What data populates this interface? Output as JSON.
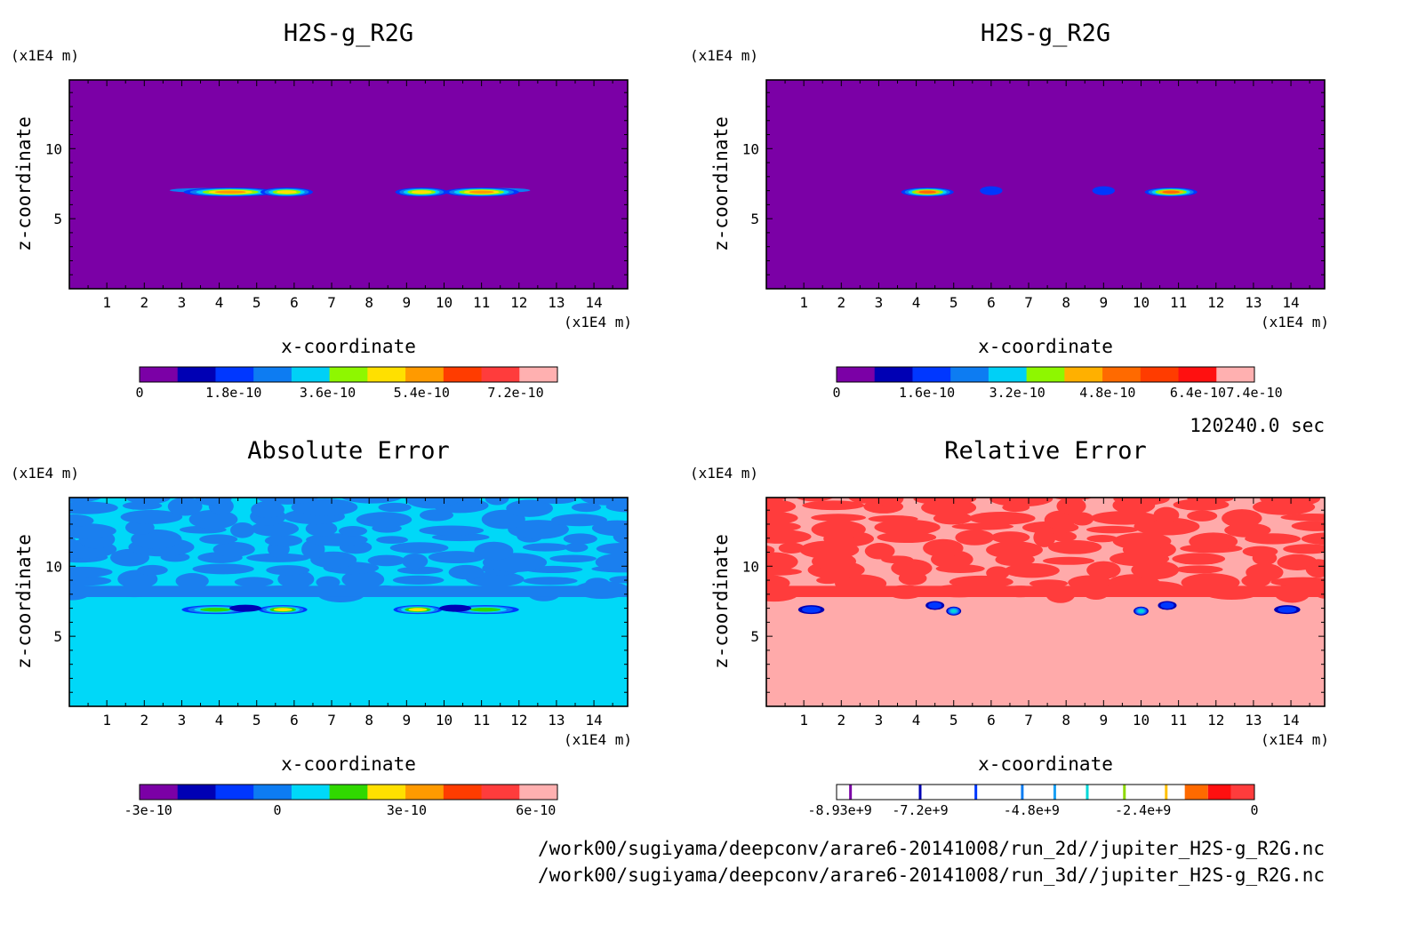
{
  "info": {
    "time_label": "120240.0 sec",
    "file_paths": [
      "/work00/sugiyama/deepconv/arare6-20141008/run_2d//jupiter_H2S-g_R2G.nc",
      "/work00/sugiyama/deepconv/arare6-20141008/run_3d//jupiter_H2S-g_R2G.nc"
    ]
  },
  "chart_data": [
    {
      "type": "heatmap",
      "title": "H2S-g_R2G",
      "xlabel": "x-coordinate",
      "ylabel": "z-coordinate",
      "x_unit": "(x1E4 m)",
      "y_unit": "(x1E4 m)",
      "x_ticks": [
        "1",
        "2",
        "3",
        "4",
        "5",
        "6",
        "7",
        "8",
        "9",
        "10",
        "11",
        "12",
        "13",
        "14"
      ],
      "y_ticks": [
        "5",
        "10"
      ],
      "xlim": [
        0,
        14.9
      ],
      "ylim": [
        0,
        14.9
      ],
      "background_color": "#7b00a6",
      "blobs": [
        {
          "x": 4.3,
          "z": 6.9,
          "w": 2.5,
          "peak_level": 7,
          "tail": "left"
        },
        {
          "x": 5.8,
          "z": 6.9,
          "w": 1.4,
          "peak_level": 6
        },
        {
          "x": 9.4,
          "z": 6.9,
          "w": 1.4,
          "peak_level": 6
        },
        {
          "x": 11.0,
          "z": 6.9,
          "w": 2.0,
          "peak_level": 7,
          "tail": "right"
        }
      ],
      "colorbar": {
        "colors": [
          "#7b00a6",
          "#0000b4",
          "#0037ff",
          "#0d7cf2",
          "#00d0f6",
          "#8ef700",
          "#ffe000",
          "#ff9a00",
          "#ff3c00",
          "#ff3c3c",
          "#ffb0b0"
        ],
        "tick_labels": [
          "0",
          "1.8e-10",
          "3.6e-10",
          "5.4e-10",
          "7.2e-10"
        ],
        "tick_values": [
          0,
          1.8e-10,
          3.6e-10,
          5.4e-10,
          7.2e-10
        ],
        "range": [
          0,
          8e-10
        ]
      }
    },
    {
      "type": "heatmap",
      "title": "H2S-g_R2G",
      "xlabel": "x-coordinate",
      "ylabel": "z-coordinate",
      "x_unit": "(x1E4 m)",
      "y_unit": "(x1E4 m)",
      "x_ticks": [
        "1",
        "2",
        "3",
        "4",
        "5",
        "6",
        "7",
        "8",
        "9",
        "10",
        "11",
        "12",
        "13",
        "14"
      ],
      "y_ticks": [
        "5",
        "10"
      ],
      "xlim": [
        0,
        14.9
      ],
      "ylim": [
        0,
        14.9
      ],
      "background_color": "#7b00a6",
      "blobs": [
        {
          "x": 4.3,
          "z": 6.9,
          "w": 1.4,
          "peak_level": 7
        },
        {
          "x": 6.0,
          "z": 7.0,
          "w": 0.6,
          "peak_level": 2
        },
        {
          "x": 9.0,
          "z": 7.0,
          "w": 0.6,
          "peak_level": 2
        },
        {
          "x": 10.8,
          "z": 6.9,
          "w": 1.4,
          "peak_level": 7
        }
      ],
      "colorbar": {
        "colors": [
          "#7b00a6",
          "#0000b4",
          "#0037ff",
          "#0d7cf2",
          "#00d0f6",
          "#8ef700",
          "#ffb000",
          "#ff6a00",
          "#ff3c00",
          "#ff1010",
          "#ffb0b0"
        ],
        "tick_labels": [
          "0",
          "1.6e-10",
          "3.2e-10",
          "4.8e-10",
          "6.4e-10",
          "7.4e-10"
        ],
        "tick_values": [
          0,
          1.6e-10,
          3.2e-10,
          4.8e-10,
          6.4e-10,
          7.4e-10
        ],
        "range": [
          0,
          7.4e-10
        ]
      }
    },
    {
      "type": "heatmap",
      "title": "Absolute Error",
      "xlabel": "x-coordinate",
      "ylabel": "z-coordinate",
      "x_unit": "(x1E4 m)",
      "y_unit": "(x1E4 m)",
      "x_ticks": [
        "1",
        "2",
        "3",
        "4",
        "5",
        "6",
        "7",
        "8",
        "9",
        "10",
        "11",
        "12",
        "13",
        "14"
      ],
      "y_ticks": [
        "5",
        "10"
      ],
      "xlim": [
        0,
        14.9
      ],
      "ylim": [
        0,
        14.9
      ],
      "background_color": "#00d8f8",
      "pattern_color": "#1a7fef",
      "blobs": [
        {
          "x": 3.9,
          "z": 6.9,
          "w": 1.8,
          "peak_level": 5
        },
        {
          "x": 5.7,
          "z": 6.9,
          "w": 1.3,
          "peak_level": 6
        },
        {
          "x": 9.3,
          "z": 6.9,
          "w": 1.3,
          "peak_level": 6
        },
        {
          "x": 11.1,
          "z": 6.9,
          "w": 1.8,
          "peak_level": 5
        }
      ],
      "colorbar": {
        "colors": [
          "#7b00a6",
          "#0000b4",
          "#0037ff",
          "#0d7cf2",
          "#00d8f8",
          "#30d800",
          "#ffe000",
          "#ff9a00",
          "#ff3c00",
          "#ff3c3c",
          "#ffb0b0"
        ],
        "tick_labels": [
          "-3e-10",
          "0",
          "3e-10",
          "6e-10"
        ],
        "tick_values": [
          -3e-10,
          0,
          3e-10,
          6e-10
        ],
        "range": [
          -3.2e-10,
          6.5e-10
        ]
      }
    },
    {
      "type": "heatmap",
      "title": "Relative Error",
      "xlabel": "x-coordinate",
      "ylabel": "z-coordinate",
      "x_unit": "(x1E4 m)",
      "y_unit": "(x1E4 m)",
      "x_ticks": [
        "1",
        "2",
        "3",
        "4",
        "5",
        "6",
        "7",
        "8",
        "9",
        "10",
        "11",
        "12",
        "13",
        "14"
      ],
      "y_ticks": [
        "5",
        "10"
      ],
      "xlim": [
        0,
        14.9
      ],
      "ylim": [
        0,
        14.9
      ],
      "background_color": "#ffaaaa",
      "pattern_color": "#ff3c3c",
      "blobs": [
        {
          "x": 1.2,
          "z": 6.9,
          "w": 0.7,
          "peak_level": 3
        },
        {
          "x": 4.5,
          "z": 7.2,
          "w": 0.5,
          "peak_level": 3
        },
        {
          "x": 5.0,
          "z": 6.8,
          "w": 0.4,
          "peak_level": 6
        },
        {
          "x": 10.0,
          "z": 6.8,
          "w": 0.4,
          "peak_level": 6
        },
        {
          "x": 10.7,
          "z": 7.2,
          "w": 0.5,
          "peak_level": 3
        },
        {
          "x": 13.9,
          "z": 6.9,
          "w": 0.7,
          "peak_level": 3
        }
      ],
      "colorbar": {
        "type": "lines",
        "line_colors": [
          "#7b00a6",
          "#0000b4",
          "#0037ff",
          "#0d7cf2",
          "#1aa0f4",
          "#00d8d8",
          "#8ed800",
          "#ffc000"
        ],
        "line_values": [
          -8700000000.0,
          -7200000000.0,
          -6000000000.0,
          -5000000000.0,
          -4300000000.0,
          -3600000000.0,
          -2800000000.0,
          -1900000000.0
        ],
        "fill_colors": [
          "#ff6a00",
          "#ff1010",
          "#ff3c3c"
        ],
        "tick_labels": [
          "-8.93e+9",
          "-7.2e+9",
          "-4.8e+9",
          "-2.4e+9",
          "0"
        ],
        "tick_values": [
          -8930000000.0,
          -7200000000.0,
          -4800000000.0,
          -2400000000.0,
          0
        ],
        "range": [
          -9000000000.0,
          0
        ]
      }
    }
  ]
}
